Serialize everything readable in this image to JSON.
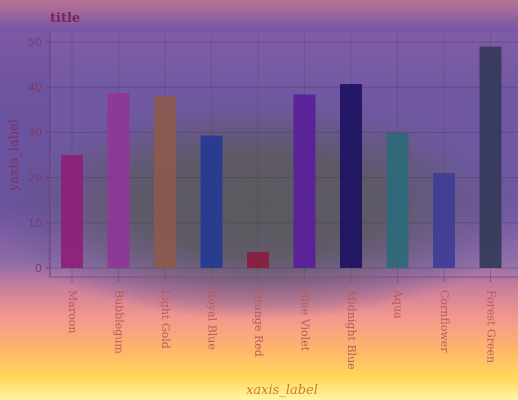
{
  "chart_data": {
    "type": "bar",
    "title": "title",
    "xlabel": "xaxis_label",
    "ylabel": "yaxis_label",
    "categories": [
      "Maroon",
      "Bubblegum",
      "Light Gold",
      "Royal Blue",
      "Orange Red",
      "Blue Violet",
      "Midnight Blue",
      "Aqua",
      "Cornflower",
      "Forest Green"
    ],
    "values": [
      25,
      38.7,
      38,
      29.3,
      3.5,
      38.4,
      40.7,
      29.9,
      21,
      49
    ],
    "ylim": [
      -2,
      52
    ],
    "yticks": [
      "0",
      "10",
      "20",
      "30",
      "40",
      "50"
    ],
    "grid": true,
    "colors": [
      "#8d1f79",
      "#8f3698",
      "#8c5a4d",
      "#263a92",
      "#8a1c3f",
      "#5a1e9b",
      "#1d1262",
      "#2f6978",
      "#3f3d96",
      "#353959"
    ]
  }
}
